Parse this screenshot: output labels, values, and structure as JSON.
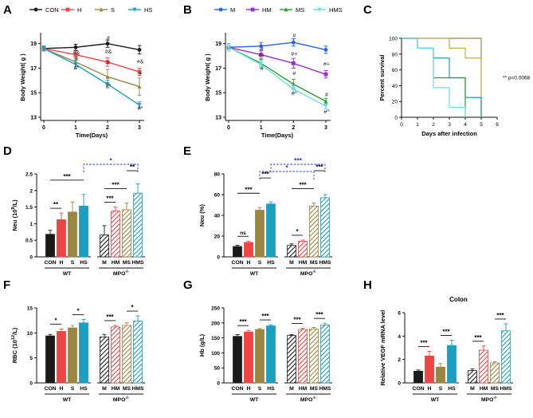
{
  "figure": {
    "colors": {
      "black": "#1a1a1a",
      "red": "#ef4444",
      "olive": "#9c8540",
      "teal": "#1a9fc0",
      "blue": "#2563eb",
      "purple": "#9b30c8",
      "green": "#2aa02a",
      "cyan": "#66e0ea",
      "olive_surv": "#a0883c",
      "sig_blue": "#1a2ef0"
    },
    "group_labels": {
      "wt": "WT",
      "mpo": "MPO",
      "mpo_sup": "-/-"
    }
  },
  "chart_data": [
    {
      "panel": "A",
      "type": "line",
      "x": [
        0,
        1,
        2,
        3
      ],
      "xlabel": "Time(Days)",
      "ylabel": "Body Weight( g )",
      "ylim": [
        13,
        19.5
      ],
      "yticks": [
        13,
        15,
        17,
        19
      ],
      "series": [
        {
          "name": "CON",
          "values": [
            18.6,
            18.7,
            19.0,
            18.5
          ],
          "errors": [
            0.2,
            0.25,
            0.3,
            0.35
          ]
        },
        {
          "name": "H",
          "values": [
            18.6,
            18.1,
            17.5,
            16.7
          ],
          "errors": [
            0.2,
            0.3,
            0.35,
            0.3
          ]
        },
        {
          "name": "S",
          "values": [
            18.6,
            17.5,
            16.3,
            15.5
          ],
          "errors": [
            0.2,
            0.4,
            0.6,
            0.7
          ]
        },
        {
          "name": "HS",
          "values": [
            18.6,
            17.3,
            15.7,
            14.0
          ],
          "errors": [
            0.2,
            0.35,
            0.3,
            0.25
          ]
        }
      ],
      "annotations": [
        {
          "x": 1,
          "y": 18.1,
          "text": "#&"
        },
        {
          "x": 1,
          "y": 17.6,
          "text": "#"
        },
        {
          "x": 1,
          "y": 16.9,
          "text": "#*"
        },
        {
          "x": 2,
          "y": 19.3,
          "text": "#"
        },
        {
          "x": 2,
          "y": 18.2,
          "text": "#&"
        },
        {
          "x": 2,
          "y": 17.3,
          "text": "#"
        },
        {
          "x": 2,
          "y": 15.4,
          "text": "#*"
        },
        {
          "x": 3,
          "y": 17.4,
          "text": "#&"
        },
        {
          "x": 3,
          "y": 16.4,
          "text": "#"
        },
        {
          "x": 3,
          "y": 13.6,
          "text": "#*"
        }
      ]
    },
    {
      "panel": "B",
      "type": "line",
      "x": [
        0,
        1,
        2,
        3
      ],
      "xlabel": "Time(Days)",
      "ylabel": "Body Weight( g )",
      "ylim": [
        13,
        19.5
      ],
      "yticks": [
        13,
        15,
        17,
        19
      ],
      "series": [
        {
          "name": "M",
          "values": [
            18.7,
            18.8,
            19.1,
            18.5
          ],
          "errors": [
            0.3,
            0.3,
            0.3,
            0.3
          ]
        },
        {
          "name": "HM",
          "values": [
            18.7,
            18.1,
            17.4,
            16.5
          ],
          "errors": [
            0.3,
            0.3,
            0.4,
            0.3
          ]
        },
        {
          "name": "MS",
          "values": [
            18.7,
            17.4,
            15.7,
            14.3
          ],
          "errors": [
            0.3,
            0.3,
            0.4,
            0.25
          ]
        },
        {
          "name": "HMS",
          "values": [
            18.7,
            17.3,
            15.3,
            13.9
          ],
          "errors": [
            0.3,
            0.3,
            0.3,
            0.2
          ]
        }
      ],
      "annotations": [
        {
          "x": 1,
          "y": 18.4,
          "text": "#"
        },
        {
          "x": 1,
          "y": 17.9,
          "text": "#+"
        },
        {
          "x": 1,
          "y": 16.8,
          "text": "#"
        },
        {
          "x": 2,
          "y": 19.5,
          "text": "#"
        },
        {
          "x": 2,
          "y": 18.0,
          "text": "#+"
        },
        {
          "x": 2,
          "y": 16.4,
          "text": "#"
        },
        {
          "x": 2,
          "y": 14.8,
          "text": "#^"
        },
        {
          "x": 3,
          "y": 17.2,
          "text": "#+"
        },
        {
          "x": 3,
          "y": 14.7,
          "text": "#"
        },
        {
          "x": 3,
          "y": 13.3,
          "text": "#^"
        }
      ]
    },
    {
      "panel": "C",
      "type": "line",
      "subtype": "survival-step",
      "xlabel": "Days after infection",
      "ylabel": "Percent survival",
      "xlim": [
        0,
        6
      ],
      "xticks": [
        0,
        1,
        2,
        3,
        4,
        5,
        6
      ],
      "ylim": [
        0,
        100
      ],
      "yticks": [
        0,
        20,
        40,
        60,
        80,
        100
      ],
      "series": [
        {
          "name": "olive",
          "steps": [
            [
              0,
              100
            ],
            [
              5,
              100
            ],
            [
              5,
              0
            ]
          ]
        },
        {
          "name": "gold",
          "steps": [
            [
              0,
              100
            ],
            [
              3,
              100
            ],
            [
              3,
              87.5
            ],
            [
              4,
              87.5
            ],
            [
              4,
              75
            ],
            [
              5,
              75
            ],
            [
              5,
              0
            ]
          ]
        },
        {
          "name": "teal",
          "steps": [
            [
              0,
              100
            ],
            [
              1,
              100
            ],
            [
              1,
              87.5
            ],
            [
              2,
              87.5
            ],
            [
              2,
              75
            ],
            [
              3,
              75
            ],
            [
              3,
              50
            ],
            [
              4,
              50
            ],
            [
              4,
              25
            ],
            [
              5,
              25
            ],
            [
              5,
              0
            ]
          ]
        },
        {
          "name": "green",
          "steps": [
            [
              0,
              100
            ],
            [
              1,
              100
            ],
            [
              1,
              87.5
            ],
            [
              2,
              87.5
            ],
            [
              2,
              50
            ],
            [
              4,
              50
            ],
            [
              4,
              0
            ]
          ]
        },
        {
          "name": "cyan",
          "steps": [
            [
              0,
              100
            ],
            [
              1,
              100
            ],
            [
              1,
              87.5
            ],
            [
              2,
              87.5
            ],
            [
              2,
              37.5
            ],
            [
              3,
              37.5
            ],
            [
              3,
              12.5
            ],
            [
              4,
              12.5
            ],
            [
              4,
              0
            ]
          ]
        }
      ],
      "pvalue": {
        "stars": "**",
        "p_prefix": "p",
        "p_value": "=0.0068"
      }
    },
    {
      "panel": "D",
      "type": "bar",
      "ylabel": "Neu (10",
      "ylabel_sup": "9",
      "ylabel_unit": "/L)",
      "ylim": [
        0,
        2.5
      ],
      "yticks": [
        0,
        0.5,
        1.0,
        1.5,
        2.0,
        2.5
      ],
      "categories": [
        "CON",
        "H",
        "S",
        "HS",
        "M",
        "HM",
        "MS",
        "HMS"
      ],
      "values": [
        0.68,
        1.12,
        1.35,
        1.53,
        0.66,
        1.38,
        1.42,
        1.92
      ],
      "errors": [
        0.12,
        0.2,
        0.3,
        0.35,
        0.28,
        0.12,
        0.2,
        0.28
      ],
      "brackets": [
        {
          "from": 0,
          "to": 1,
          "level": 0,
          "label": "**"
        },
        {
          "from": 0,
          "to": 3,
          "level": 1,
          "label": "***"
        },
        {
          "from": 4,
          "to": 5,
          "level": 0,
          "label": "***"
        },
        {
          "from": 4,
          "to": 6,
          "level": 1,
          "label": "***"
        },
        {
          "from": 6,
          "to": 7,
          "level": 2,
          "label": "**"
        }
      ],
      "dashed_brackets": [
        {
          "from": 3,
          "to": 7,
          "level": 0,
          "label": "*"
        }
      ]
    },
    {
      "panel": "E",
      "type": "bar",
      "ylabel": "Neu (%)",
      "ylim": [
        0,
        80
      ],
      "yticks": [
        0,
        20,
        40,
        60,
        80
      ],
      "categories": [
        "CON",
        "H",
        "S",
        "HS",
        "M",
        "HM",
        "MS",
        "HMS"
      ],
      "values": [
        10,
        14,
        45,
        51,
        11,
        15,
        49,
        57
      ],
      "errors": [
        1.2,
        1.2,
        2.5,
        2.0,
        1.5,
        1.2,
        3.0,
        3.0
      ],
      "brackets": [
        {
          "from": 0,
          "to": 1,
          "level": 0,
          "label": "ns"
        },
        {
          "from": 0,
          "to": 2,
          "level": 1,
          "label": "***"
        },
        {
          "from": 2,
          "to": 3,
          "level": 2,
          "label": "***"
        },
        {
          "from": 4,
          "to": 5,
          "level": 0,
          "label": "*"
        },
        {
          "from": 4,
          "to": 6,
          "level": 1,
          "label": "***"
        },
        {
          "from": 6,
          "to": 7,
          "level": 2,
          "label": "***"
        }
      ],
      "dashed_brackets": [
        {
          "from": 2,
          "to": 6,
          "level": 0,
          "label": "*"
        },
        {
          "from": 3,
          "to": 7,
          "level": 1,
          "label": "***"
        }
      ]
    },
    {
      "panel": "F",
      "type": "bar",
      "ylabel": "RBC (10",
      "ylabel_sup": "12",
      "ylabel_unit": "/L)",
      "ylim": [
        0,
        15
      ],
      "yticks": [
        0,
        5,
        10,
        15
      ],
      "categories": [
        "CON",
        "H",
        "S",
        "HS",
        "M",
        "HM",
        "MS",
        "HMS"
      ],
      "values": [
        9.4,
        10.3,
        11.0,
        12.0,
        9.2,
        11.2,
        11.5,
        12.4
      ],
      "errors": [
        0.3,
        0.5,
        0.5,
        0.7,
        0.5,
        0.3,
        0.5,
        1.0
      ],
      "brackets": [
        {
          "from": 0,
          "to": 1,
          "level": 0,
          "label": "*"
        },
        {
          "from": 2,
          "to": 3,
          "level": 0,
          "label": "*"
        },
        {
          "from": 4,
          "to": 5,
          "level": 0,
          "label": "***"
        },
        {
          "from": 6,
          "to": 7,
          "level": 0,
          "label": "*"
        }
      ],
      "dashed_brackets": []
    },
    {
      "panel": "G",
      "type": "bar",
      "ylabel": "Hb (g/L)",
      "ylim": [
        0,
        250
      ],
      "yticks": [
        0,
        50,
        100,
        150,
        200,
        250
      ],
      "categories": [
        "CON",
        "H",
        "S",
        "HS",
        "M",
        "HM",
        "MS",
        "HMS"
      ],
      "values": [
        155,
        170,
        178,
        190,
        158,
        178,
        180,
        193
      ],
      "errors": [
        6,
        5,
        3,
        4,
        3,
        4,
        5,
        6
      ],
      "brackets": [
        {
          "from": 0,
          "to": 1,
          "level": 0,
          "label": "***"
        },
        {
          "from": 2,
          "to": 3,
          "level": 0,
          "label": "***"
        },
        {
          "from": 4,
          "to": 5,
          "level": 0,
          "label": "***"
        },
        {
          "from": 6,
          "to": 7,
          "level": 0,
          "label": "***"
        }
      ],
      "dashed_brackets": []
    },
    {
      "panel": "H",
      "type": "bar",
      "title": "Colon",
      "ylabel": "Relative VEGF mRNA level",
      "ylim": [
        0,
        6
      ],
      "yticks": [
        0,
        2,
        4,
        6
      ],
      "categories": [
        "CON",
        "H",
        "S",
        "HS",
        "M",
        "HM",
        "MS",
        "HMS"
      ],
      "values": [
        1.0,
        2.3,
        1.35,
        3.2,
        1.05,
        2.8,
        1.7,
        4.45
      ],
      "errors": [
        0.1,
        0.4,
        0.3,
        0.45,
        0.15,
        0.35,
        0.1,
        0.6
      ],
      "brackets": [
        {
          "from": 0,
          "to": 1,
          "level": 0,
          "label": "***"
        },
        {
          "from": 2,
          "to": 3,
          "level": 0,
          "label": "***"
        },
        {
          "from": 4,
          "to": 5,
          "level": 0,
          "label": "***"
        },
        {
          "from": 6,
          "to": 7,
          "level": 0,
          "label": "***"
        }
      ],
      "dashed_brackets": []
    }
  ]
}
